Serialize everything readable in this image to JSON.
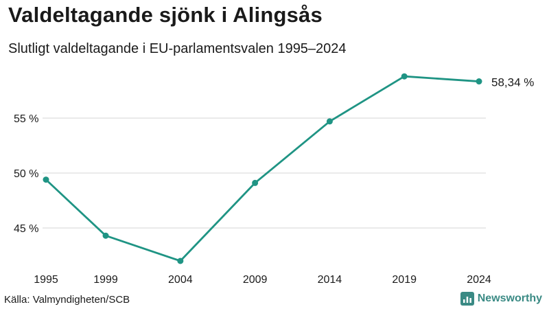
{
  "header": {
    "title": "Valdeltagande sjönk i Alingsås",
    "subtitle": "Slutligt valdeltagande i EU-parlamentsvalen 1995–2024"
  },
  "footer": {
    "source": "Källa: Valmyndigheten/SCB",
    "brand": "Newsworthy",
    "brand_icon": "bar-chart-logo-icon"
  },
  "colors": {
    "line": "#1f9484",
    "grid": "#dddddd",
    "brand": "#3a8a84"
  },
  "chart_data": {
    "type": "line",
    "title": "Valdeltagande sjönk i Alingsås",
    "subtitle": "Slutligt valdeltagande i EU-parlamentsvalen 1995–2024",
    "x": [
      1995,
      1999,
      2004,
      2009,
      2014,
      2019,
      2024
    ],
    "x_tick_labels": [
      "1995",
      "1999",
      "2004",
      "2009",
      "2014",
      "2019",
      "2024"
    ],
    "series": [
      {
        "values": [
          49.4,
          44.3,
          42.0,
          49.1,
          54.7,
          58.8,
          58.34
        ]
      }
    ],
    "y_ticks": [
      45,
      50,
      55
    ],
    "y_tick_labels": [
      "45 %",
      "50 %",
      "55 %"
    ],
    "ylim": [
      41,
      59
    ],
    "end_label": "58,34 %",
    "grid": true,
    "xlabel": "",
    "ylabel": ""
  }
}
